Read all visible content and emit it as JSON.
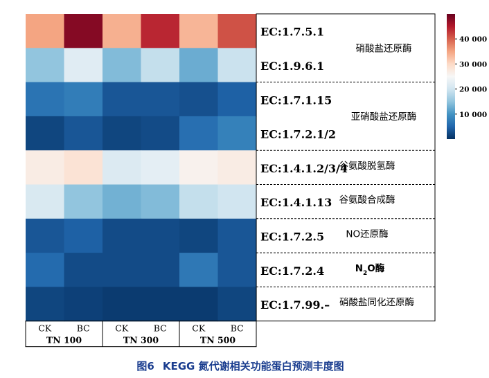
{
  "chart_data": {
    "type": "heatmap",
    "columns": [
      "CK",
      "BC",
      "CK",
      "BC",
      "CK",
      "BC"
    ],
    "groups": [
      "TN 100",
      "TN 300",
      "TN 500"
    ],
    "rows": [
      "EC:1.7.5.1",
      "EC:1.9.6.1",
      "EC:1.7.1.15",
      "EC:1.7.2.1/2",
      "EC:1.4.1.2/3/4",
      "EC:1.4.1.13",
      "EC:1.7.2.5",
      "EC:1.7.2.4",
      "EC:1.7.99.–"
    ],
    "enzyme_groups": [
      {
        "name": "硝酸盐还原酶",
        "rows": [
          0,
          1
        ]
      },
      {
        "name": "亚硝酸盐还原酶",
        "rows": [
          2,
          3
        ]
      },
      {
        "name": "谷氨酸脱氢酶",
        "rows": [
          4
        ]
      },
      {
        "name": "谷氨酸合成酶",
        "rows": [
          5
        ]
      },
      {
        "name": "NO还原酶",
        "rows": [
          6
        ]
      },
      {
        "name_parts": [
          "N",
          "2",
          "O酶"
        ],
        "rows": [
          7
        ]
      },
      {
        "name": "硝酸盐同化还原酶",
        "rows": [
          8
        ]
      }
    ],
    "values": [
      [
        35000,
        48000,
        34000,
        44000,
        33500,
        41000
      ],
      [
        15000,
        22000,
        14000,
        19000,
        12500,
        19500
      ],
      [
        6500,
        7500,
        3500,
        3500,
        3000,
        4500
      ],
      [
        2000,
        3500,
        2000,
        2500,
        6000,
        8000
      ],
      [
        27000,
        28500,
        21500,
        22500,
        26000,
        27000
      ],
      [
        21000,
        15000,
        13000,
        14000,
        19000,
        20000
      ],
      [
        3500,
        4500,
        2500,
        2500,
        2000,
        3500
      ],
      [
        5500,
        2500,
        2500,
        2500,
        7000,
        3500
      ],
      [
        2000,
        1500,
        1000,
        1000,
        1000,
        2000
      ]
    ],
    "colorbar": {
      "range": [
        0,
        50000
      ],
      "ticks": [
        10000,
        20000,
        30000,
        40000
      ],
      "tick_labels": [
        "10 000",
        "20 000",
        "30 000",
        "40 000"
      ]
    },
    "colors": [
      "#053061",
      "#2166ac",
      "#4393c3",
      "#92c5de",
      "#d1e5f0",
      "#f7f7f7",
      "#fddbc7",
      "#f4a582",
      "#d6604d",
      "#b2182b",
      "#67001f"
    ]
  },
  "caption": {
    "number": "图6",
    "title": "KEGG 氮代谢相关功能蛋白预测丰度图"
  }
}
